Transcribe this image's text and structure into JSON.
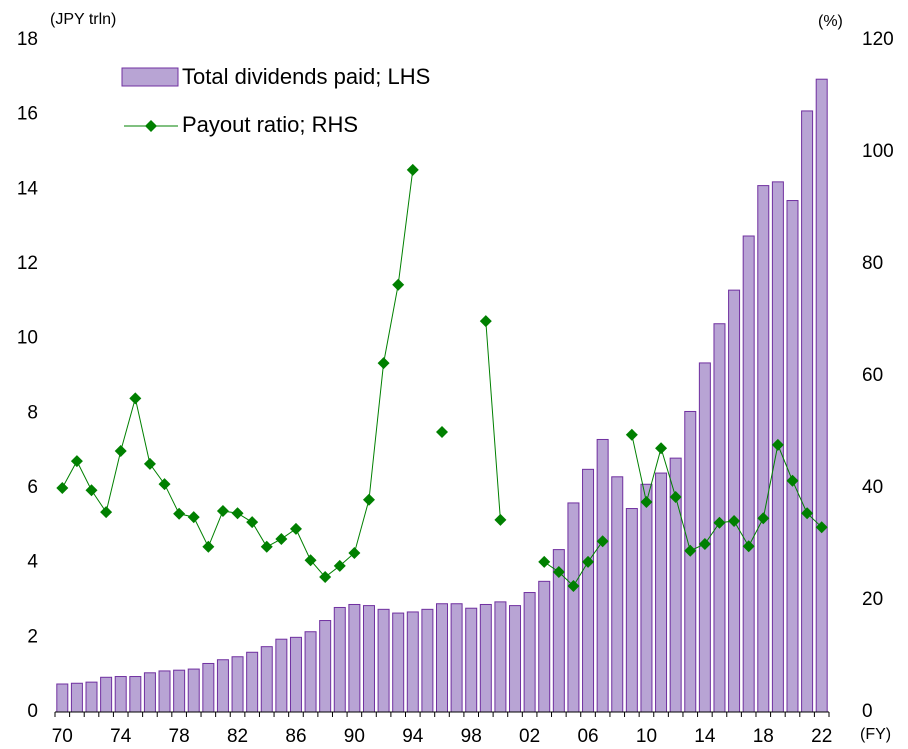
{
  "chart_data": {
    "type": "bar-line",
    "y_label": "(JPY trln)",
    "y2_label": "(%)",
    "x_label": "(FY)",
    "categories": [
      "70",
      null,
      null,
      null,
      "74",
      null,
      null,
      null,
      "78",
      null,
      null,
      null,
      "82",
      null,
      null,
      null,
      "86",
      null,
      null,
      null,
      "90",
      null,
      null,
      null,
      "94",
      null,
      null,
      null,
      "98",
      null,
      null,
      null,
      "02",
      null,
      null,
      null,
      "06",
      null,
      null,
      null,
      "10",
      null,
      null,
      null,
      "14",
      null,
      null,
      null,
      "18",
      null,
      null,
      null,
      "22"
    ],
    "series": [
      {
        "name": "Total dividends paid; LHS",
        "kind": "bar",
        "color": "#b8a4d4",
        "edge_color": "#7030a0",
        "values": [
          0.75,
          0.77,
          0.8,
          0.93,
          0.95,
          0.95,
          1.05,
          1.1,
          1.12,
          1.15,
          1.3,
          1.4,
          1.48,
          1.6,
          1.75,
          1.95,
          2.0,
          2.15,
          2.45,
          2.8,
          2.88,
          2.85,
          2.75,
          2.65,
          2.68,
          2.75,
          2.9,
          2.9,
          2.78,
          2.88,
          2.95,
          2.85,
          3.2,
          3.5,
          4.35,
          5.6,
          6.5,
          7.3,
          6.3,
          5.45,
          6.1,
          6.4,
          6.8,
          8.05,
          9.35,
          10.4,
          11.3,
          12.75,
          14.1,
          14.2,
          13.7,
          16.1,
          16.95
        ]
      },
      {
        "name": "Payout ratio; RHS",
        "kind": "line",
        "axis": "y2",
        "color": "#008000",
        "values": [
          40,
          44.8,
          39.6,
          35.7,
          46.6,
          56,
          44.3,
          40.7,
          35.4,
          34.8,
          29.5,
          35.9,
          35.5,
          33.9,
          29.5,
          30.9,
          32.7,
          27.1,
          24.1,
          26.1,
          28.4,
          37.9,
          62.3,
          76.3,
          96.8,
          null,
          50,
          null,
          null,
          69.8,
          34.3,
          null,
          null,
          26.8,
          25,
          22.5,
          26.8,
          30.5,
          null,
          49.5,
          37.5,
          47.1,
          38.4,
          28.8,
          30,
          33.8,
          34.1,
          29.6,
          34.6,
          47.7,
          41.3,
          35.5,
          33
        ]
      }
    ],
    "ylim": [
      0,
      18
    ],
    "yticks": [
      0,
      2,
      4,
      6,
      8,
      10,
      12,
      14,
      16,
      18
    ],
    "y2lim": [
      0,
      120
    ],
    "y2ticks": [
      0,
      20,
      40,
      60,
      80,
      100,
      120
    ],
    "grid": false,
    "legend": "upper left"
  }
}
